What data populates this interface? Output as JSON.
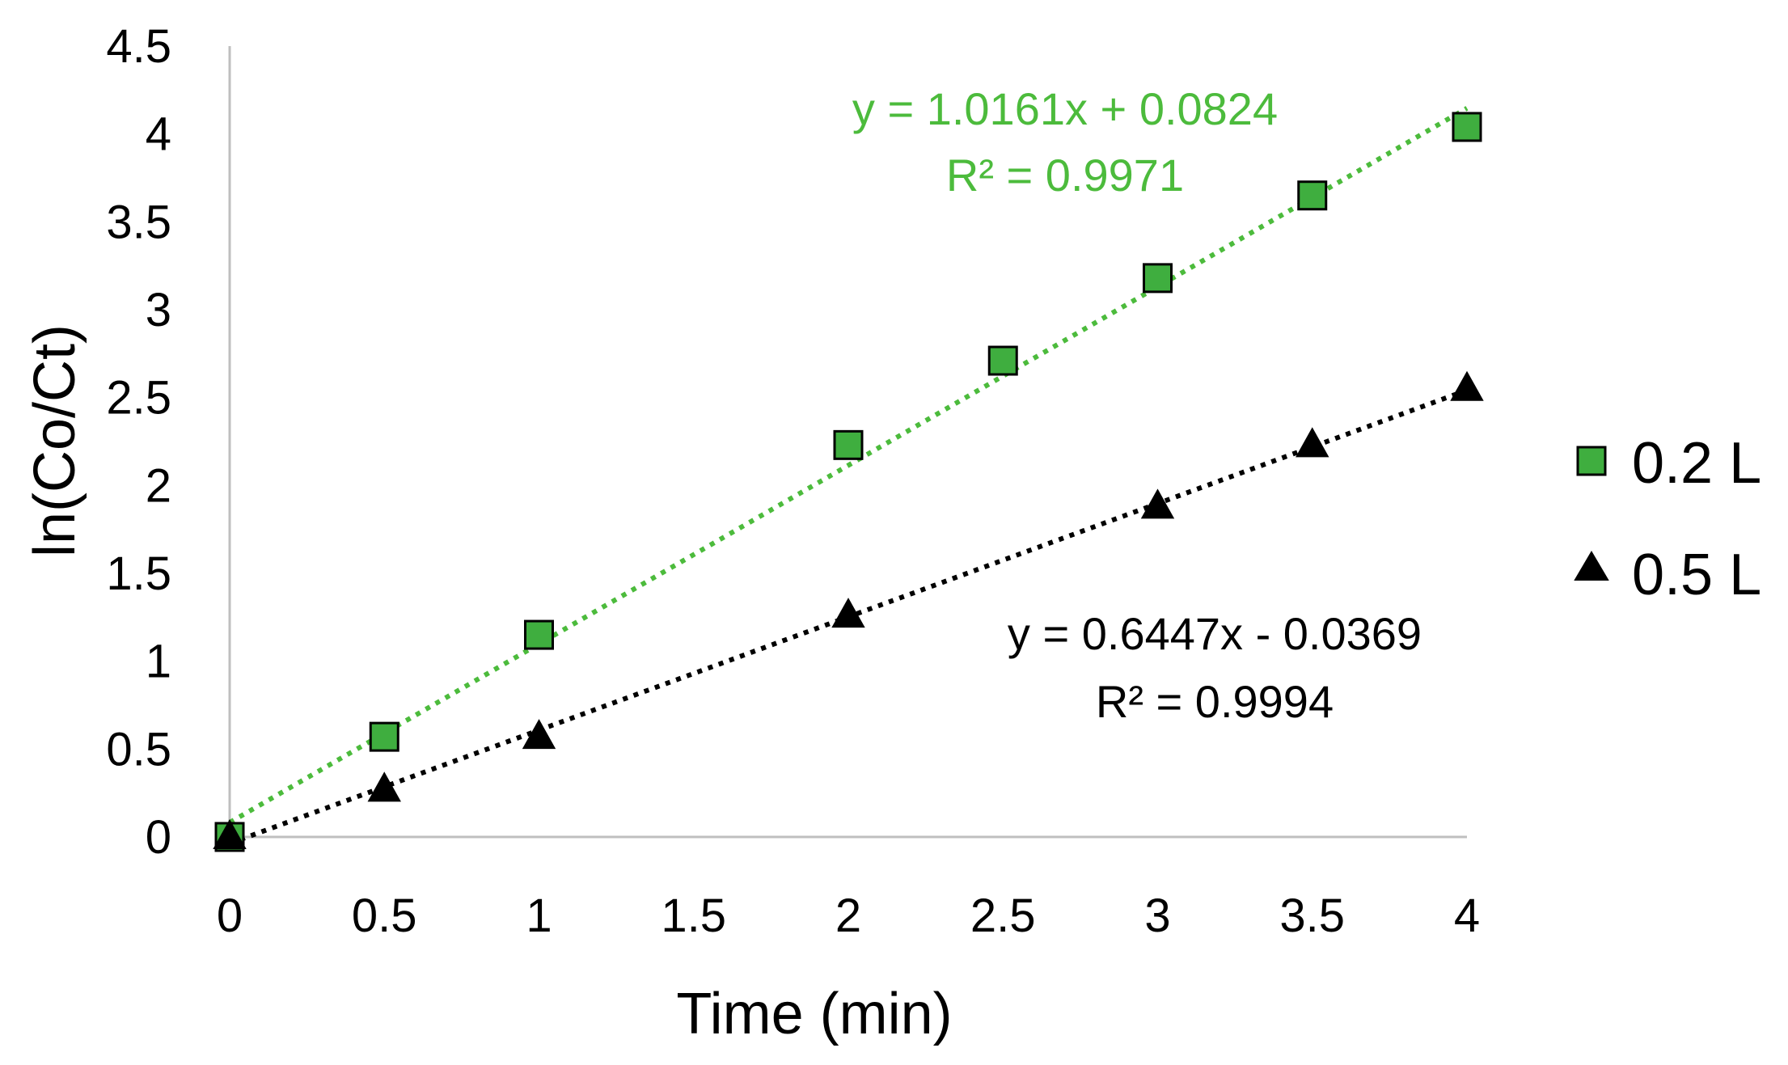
{
  "chart_data": {
    "type": "scatter",
    "title": "",
    "xlabel": "Time (min)",
    "ylabel": "ln(Co/Ct)",
    "xlim": [
      0,
      4
    ],
    "ylim": [
      0,
      4.5
    ],
    "xticks": [
      "0",
      "0.5",
      "1",
      "1.5",
      "2",
      "2.5",
      "3",
      "3.5",
      "4"
    ],
    "yticks": [
      "0",
      "0.5",
      "1",
      "1.5",
      "2",
      "2.5",
      "3",
      "3.5",
      "4",
      "4.5"
    ],
    "grid": false,
    "legend_position": "right",
    "series": [
      {
        "name": "0.2 L",
        "marker": "square",
        "color": "#3fae3f",
        "trendline_color": "#4cbb3c",
        "x": [
          0,
          0.5,
          1,
          2,
          2.5,
          3,
          3.5,
          4
        ],
        "y": [
          0,
          0.57,
          1.15,
          2.23,
          2.71,
          3.18,
          3.65,
          4.04
        ],
        "trendline": {
          "slope": 1.0161,
          "intercept": 0.0824
        },
        "equation": "y = 1.0161x + 0.0824",
        "r_squared": "R² = 0.9971"
      },
      {
        "name": "0.5 L",
        "marker": "triangle",
        "color": "#000000",
        "trendline_color": "#000000",
        "x": [
          0,
          0.5,
          1,
          2,
          3,
          3.5,
          4
        ],
        "y": [
          0,
          0.27,
          0.57,
          1.26,
          1.88,
          2.23,
          2.55
        ],
        "trendline": {
          "slope": 0.6447,
          "intercept": -0.0369
        },
        "equation": "y = 0.6447x  - 0.0369",
        "r_squared": "R² = 0.9994"
      }
    ]
  }
}
